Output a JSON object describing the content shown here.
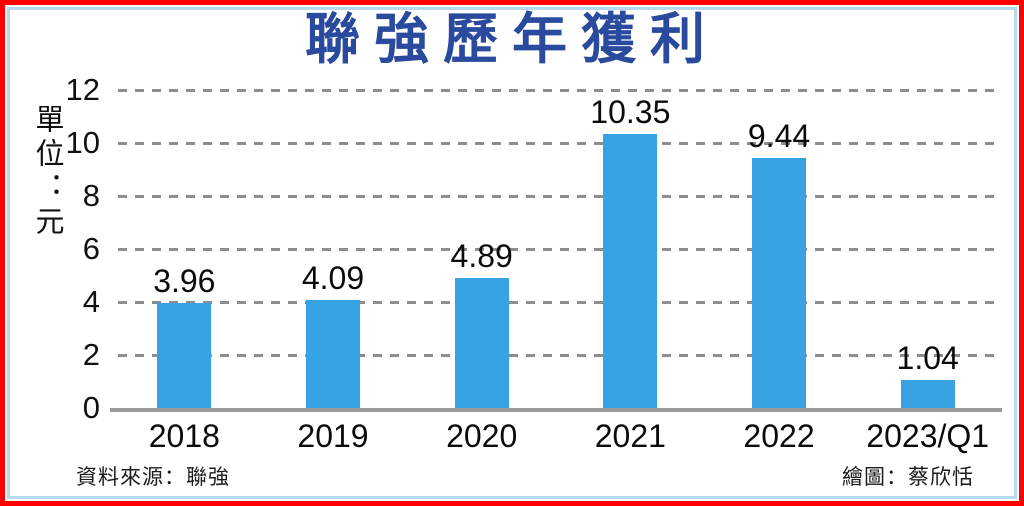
{
  "title": "聯強歷年獲利",
  "y_axis": {
    "unit_label": "單位：元"
  },
  "footer": {
    "source": "資料來源：聯強",
    "credit": "繪圖：蔡欣恬"
  },
  "colors": {
    "bar": "#38a3e3",
    "title": "#2a4a9d",
    "frame_outer": "#fe0000",
    "frame_inner": "#b7d9ed",
    "gridline": "#8d8d8d",
    "baseline": "#9b9b9b"
  },
  "chart_data": {
    "type": "bar",
    "title": "聯強歷年獲利",
    "ylabel": "單位：元",
    "categories": [
      "2018",
      "2019",
      "2020",
      "2021",
      "2022",
      "2023/Q1"
    ],
    "values": [
      3.96,
      4.09,
      4.89,
      10.35,
      9.44,
      1.04
    ],
    "data_labels": [
      "3.96",
      "4.09",
      "4.89",
      "10.35",
      "9.44",
      "1.04"
    ],
    "ylim": [
      0,
      12
    ],
    "yticks": [
      0,
      2,
      4,
      6,
      8,
      10,
      12
    ],
    "grid": "horizontal-dashed",
    "legend": "none",
    "bar_color": "#38a3e3"
  }
}
